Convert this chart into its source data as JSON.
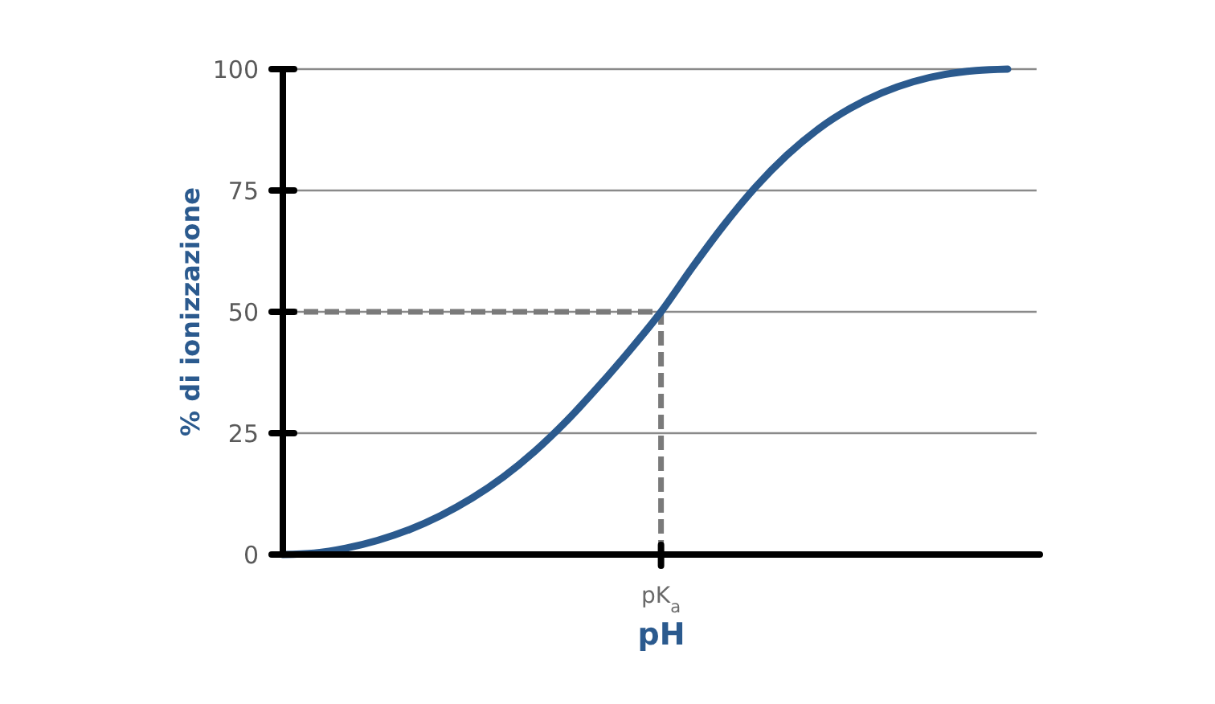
{
  "chart_data": {
    "type": "line",
    "xlabel": "pH",
    "ylabel": "% di ionizzazione",
    "categories": [
      null,
      null,
      null,
      null,
      null,
      null,
      null,
      null,
      null,
      null,
      null,
      null,
      "pK$_{a}$",
      null,
      null,
      null,
      null,
      null,
      null,
      null,
      null,
      null,
      null,
      null
    ],
    "values": [
      0,
      0.3,
      1.3,
      2.9,
      5.1,
      8,
      11.6,
      16,
      21.3,
      27.5,
      34.5,
      42,
      50,
      59.2,
      67.9,
      75.7,
      82.3,
      87.7,
      91.9,
      95.1,
      97.4,
      98.9,
      99.7,
      100
    ],
    "color": "#2b5a8e",
    "ylim": [
      0,
      100
    ],
    "yticks": [
      0,
      25,
      50,
      75,
      100
    ],
    "grid": "y",
    "ref_lines": [
      {
        "axis": "y",
        "value": 50,
        "color": "#7a7a7a",
        "line_style": "dashed"
      },
      {
        "axis": "x",
        "value": "pK$_{a}$",
        "color": "#7a7a7a",
        "line_style": "dashed"
      }
    ]
  }
}
